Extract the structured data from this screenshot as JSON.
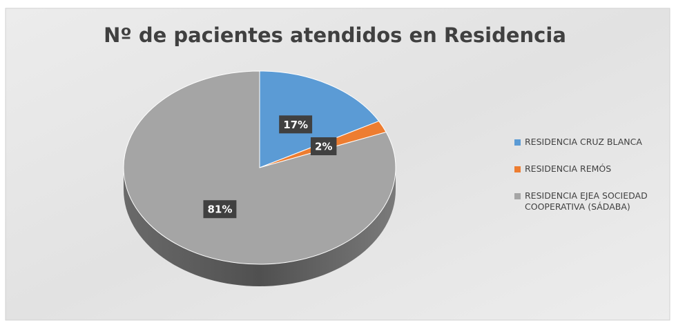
{
  "chart_data": {
    "type": "pie",
    "title": "Nº de pacientes atendidos en Residencia",
    "categories": [
      "RESIDENCIA CRUZ BLANCA",
      "RESIDENCIA REMÓS",
      "RESIDENCIA EJEA SOCIEDAD COOPERATIVA (SÁDABA)"
    ],
    "values": [
      17,
      2,
      81
    ],
    "value_labels": [
      "17%",
      "2%",
      "81%"
    ],
    "colors": [
      "#5b9bd5",
      "#ed7d31",
      "#a5a5a5"
    ],
    "legend": "right"
  }
}
